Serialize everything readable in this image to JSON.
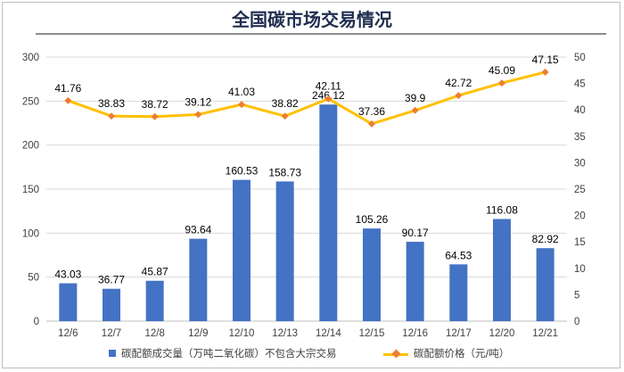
{
  "title": "全国碳市场交易情况",
  "chart_data": {
    "type": "bar+line",
    "categories": [
      "12/6",
      "12/7",
      "12/8",
      "12/9",
      "12/10",
      "12/13",
      "12/14",
      "12/15",
      "12/16",
      "12/17",
      "12/20",
      "12/21"
    ],
    "series": [
      {
        "name": "碳配额成交量（万吨二氧化碳）不包含大宗交易",
        "type": "bar",
        "axis": "left",
        "color": "#4472c4",
        "values": [
          43.03,
          36.77,
          45.87,
          93.64,
          160.53,
          158.73,
          246.12,
          105.26,
          90.17,
          64.53,
          116.08,
          82.92
        ],
        "labels": [
          "43.03",
          "36.77",
          "45.87",
          "93.64",
          "160.53",
          "158.73",
          "246.12",
          "105.26",
          "90.17",
          "64.53",
          "116.08",
          "82.92"
        ]
      },
      {
        "name": "碳配额价格（元/吨）",
        "type": "line",
        "axis": "right",
        "color": "#ffc000",
        "marker_color": "#ed7d31",
        "values": [
          41.76,
          38.83,
          38.72,
          39.12,
          41.03,
          38.82,
          42.11,
          37.36,
          39.9,
          42.72,
          45.09,
          47.15
        ],
        "labels": [
          "41.76",
          "38.83",
          "38.72",
          "39.12",
          "41.03",
          "38.82",
          "42.11",
          "37.36",
          "39.9",
          "42.72",
          "45.09",
          "47.15"
        ]
      }
    ],
    "y_left": {
      "min": 0,
      "max": 300,
      "ticks": [
        "0",
        "50",
        "100",
        "150",
        "200",
        "250",
        "300"
      ]
    },
    "y_right": {
      "min": 0,
      "max": 50,
      "ticks": [
        "0",
        "5",
        "10",
        "15",
        "20",
        "25",
        "30",
        "35",
        "40",
        "45",
        "50"
      ]
    },
    "grid": true,
    "legend_position": "bottom"
  }
}
